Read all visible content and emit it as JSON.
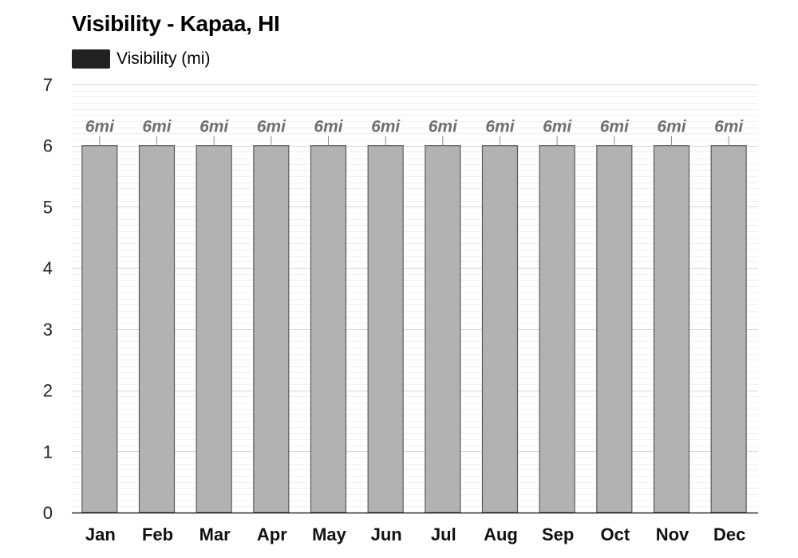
{
  "chart_data": {
    "type": "bar",
    "title": "Visibility - Kapaa, HI",
    "legend": "Visibility (mi)",
    "legend_color": "#222222",
    "bar_color": "#b2b2b2",
    "bar_border_color": "#5a5a5a",
    "categories": [
      "Jan",
      "Feb",
      "Mar",
      "Apr",
      "May",
      "Jun",
      "Jul",
      "Aug",
      "Sep",
      "Oct",
      "Nov",
      "Dec"
    ],
    "series": [
      {
        "name": "Visibility (mi)",
        "values": [
          6,
          6,
          6,
          6,
          6,
          6,
          6,
          6,
          6,
          6,
          6,
          6
        ],
        "labels": [
          "6mi",
          "6mi",
          "6mi",
          "6mi",
          "6mi",
          "6mi",
          "6mi",
          "6mi",
          "6mi",
          "6mi",
          "6mi",
          "6mi"
        ]
      }
    ],
    "ylim": [
      0,
      7
    ],
    "yticks": [
      "0",
      "1",
      "2",
      "3",
      "4",
      "5",
      "6",
      "7"
    ],
    "xlabel": "",
    "ylabel": "",
    "grid": true,
    "legend_position": "top-left"
  }
}
